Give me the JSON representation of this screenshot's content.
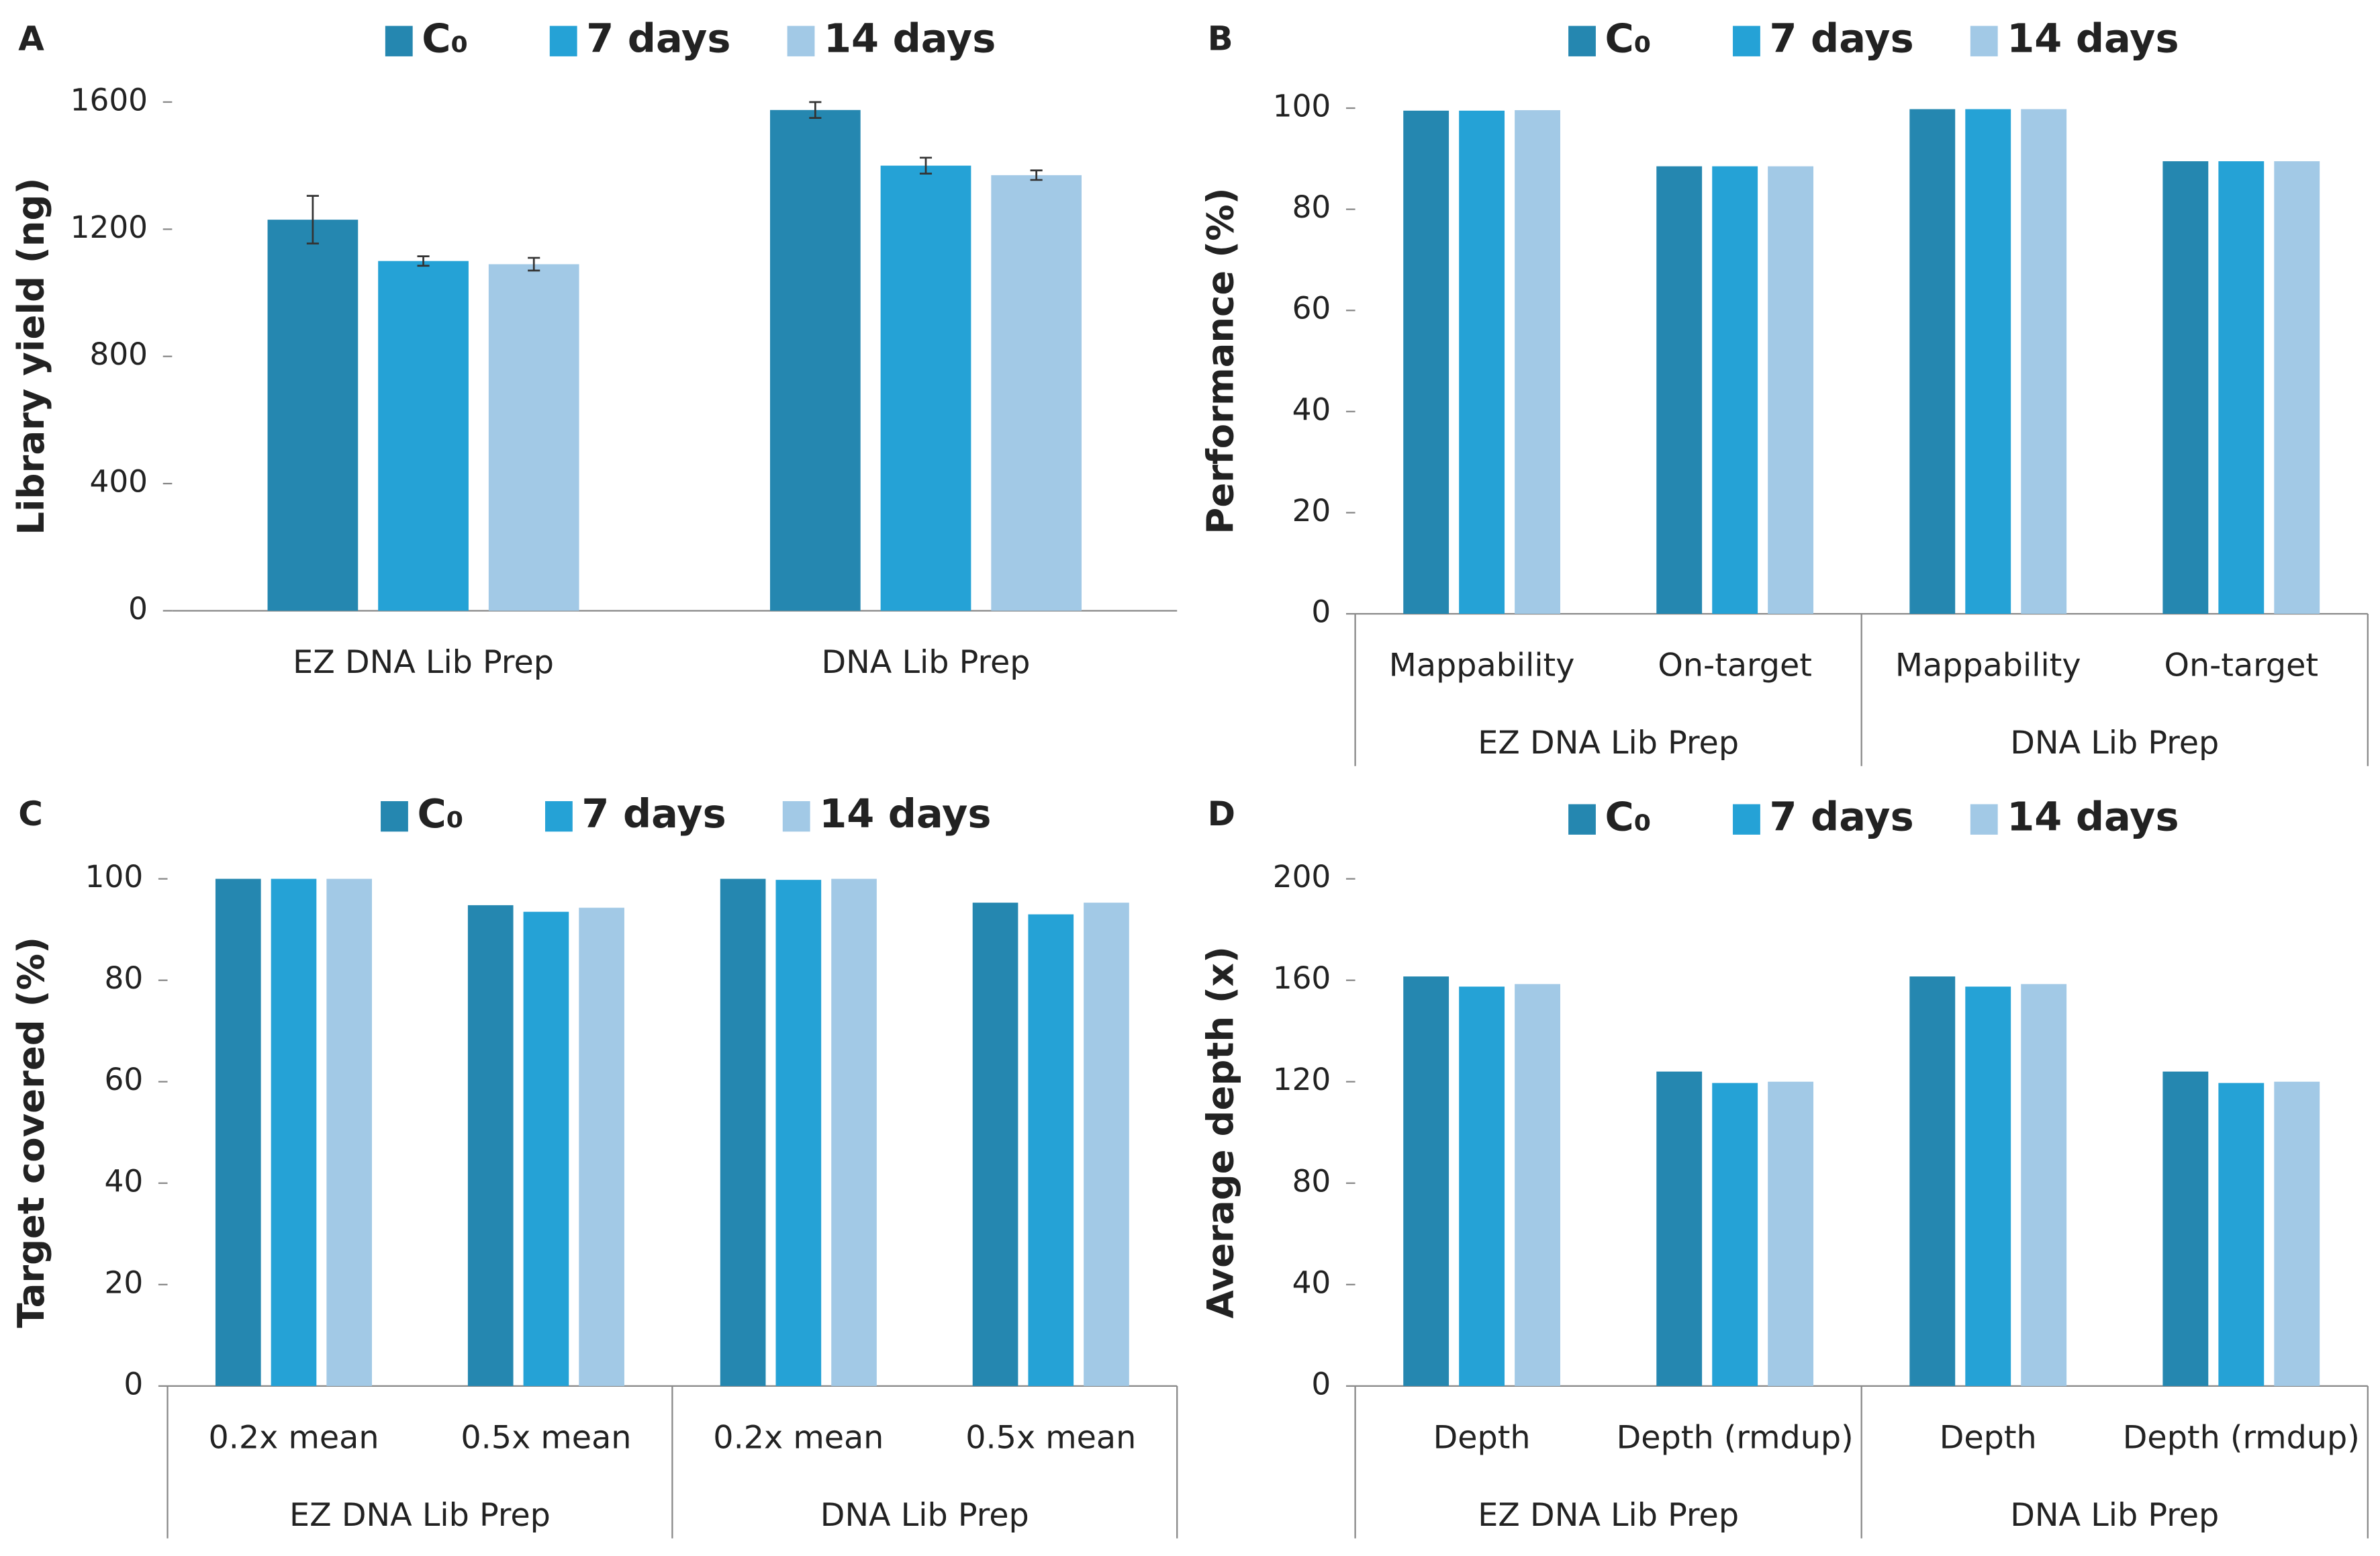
{
  "chart_data": [
    {
      "type": "bar",
      "panel": "A",
      "ylabel": "Library yield (ng)",
      "categories": [
        "EZ DNA Lib Prep",
        "DNA Lib Prep"
      ],
      "series": [
        {
          "name": "C₀",
          "color": "#2587b0",
          "values": [
            1230,
            1575
          ],
          "errors": [
            75,
            25
          ]
        },
        {
          "name": "7 days",
          "color": "#25a2d6",
          "values": [
            1100,
            1400
          ],
          "errors": [
            15,
            25
          ]
        },
        {
          "name": "14 days",
          "color": "#a2c9e6",
          "values": [
            1090,
            1370
          ],
          "errors": [
            20,
            15
          ]
        }
      ],
      "ylim": [
        0,
        1600
      ],
      "yticks": [
        0,
        400,
        800,
        1200,
        1600
      ]
    },
    {
      "type": "bar",
      "panel": "B",
      "ylabel": "Performance (%)",
      "categories": [
        "Mappability",
        "On-target",
        "Mappability",
        "On-target"
      ],
      "groups": [
        "EZ DNA Lib Prep",
        "DNA Lib Prep"
      ],
      "series": [
        {
          "name": "C₀",
          "color": "#2587b0",
          "values": [
            99.5,
            88.5,
            99.8,
            89.5
          ]
        },
        {
          "name": "7 days",
          "color": "#25a2d6",
          "values": [
            99.5,
            88.5,
            99.8,
            89.5
          ]
        },
        {
          "name": "14 days",
          "color": "#a2c9e6",
          "values": [
            99.6,
            88.5,
            99.8,
            89.5
          ]
        }
      ],
      "ylim": [
        0,
        100
      ],
      "yticks": [
        0,
        20,
        40,
        60,
        80,
        100
      ]
    },
    {
      "type": "bar",
      "panel": "C",
      "ylabel": "Target covered (%)",
      "categories": [
        "0.2x mean",
        "0.5x mean",
        "0.2x mean",
        "0.5x mean"
      ],
      "groups": [
        "EZ DNA Lib Prep",
        "DNA Lib Prep"
      ],
      "series": [
        {
          "name": "C₀",
          "color": "#2587b0",
          "values": [
            100,
            94.8,
            100,
            95.3
          ]
        },
        {
          "name": "7 days",
          "color": "#25a2d6",
          "values": [
            100,
            93.5,
            99.8,
            93
          ]
        },
        {
          "name": "14 days",
          "color": "#a2c9e6",
          "values": [
            100,
            94.3,
            100,
            95.3
          ]
        }
      ],
      "ylim": [
        0,
        100
      ],
      "yticks": [
        0,
        20,
        40,
        60,
        80,
        100
      ]
    },
    {
      "type": "bar",
      "panel": "D",
      "ylabel": "Average depth (x)",
      "categories": [
        "Depth",
        "Depth (rmdup)",
        "Depth",
        "Depth (rmdup)"
      ],
      "groups": [
        "EZ DNA Lib Prep",
        "DNA Lib Prep"
      ],
      "series": [
        {
          "name": "C₀",
          "color": "#2587b0",
          "values": [
            161.5,
            124,
            161.5,
            124
          ]
        },
        {
          "name": "7 days",
          "color": "#25a2d6",
          "values": [
            157.5,
            119.5,
            157.5,
            119.5
          ]
        },
        {
          "name": "14 days",
          "color": "#a2c9e6",
          "values": [
            158.5,
            120,
            158.5,
            120
          ]
        }
      ],
      "ylim": [
        0,
        200
      ],
      "yticks": [
        0,
        40,
        80,
        120,
        160,
        200
      ]
    }
  ]
}
